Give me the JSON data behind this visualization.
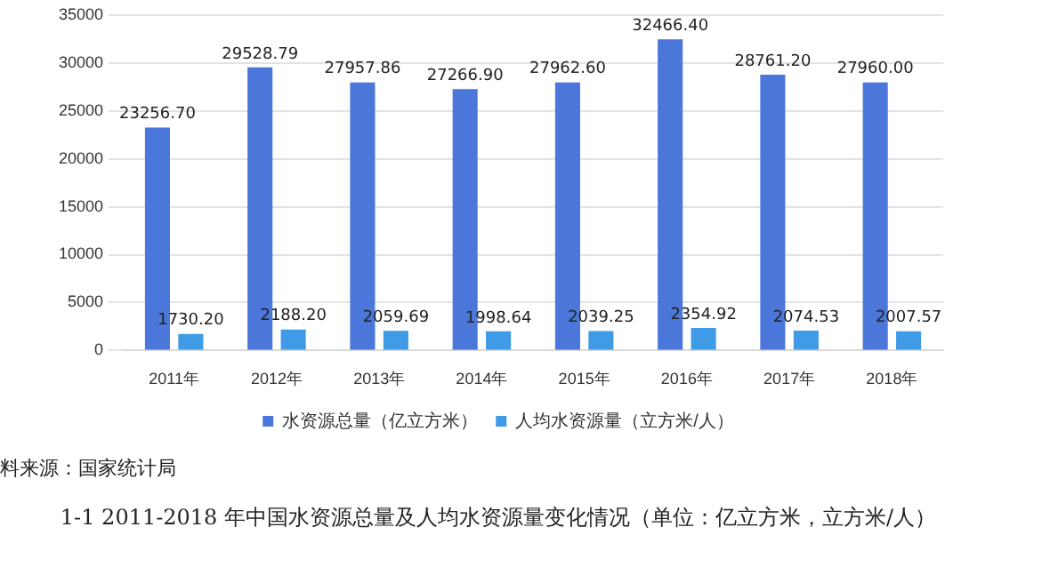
{
  "chart_data": {
    "type": "bar",
    "categories": [
      "2011年",
      "2012年",
      "2013年",
      "2014年",
      "2015年",
      "2016年",
      "2017年",
      "2018年"
    ],
    "series": [
      {
        "name": "水资源总量（亿立方米）",
        "color": "#4a77d9",
        "values": [
          23256.7,
          29528.79,
          27957.86,
          27266.9,
          27962.6,
          32466.4,
          28761.2,
          27960.0
        ],
        "value_labels": [
          "23256.70",
          "29528.79",
          "27957.86",
          "27266.90",
          "27962.60",
          "32466.40",
          "28761.20",
          "27960.00"
        ]
      },
      {
        "name": "人均水资源量（立方米/人）",
        "color": "#3f9be6",
        "values": [
          1730.2,
          2188.2,
          2059.69,
          1998.64,
          2039.25,
          2354.92,
          2074.53,
          2007.57
        ],
        "value_labels": [
          "1730.20",
          "2188.20",
          "2059.69",
          "1998.64",
          "2039.25",
          "2354.92",
          "2074.53",
          "2007.57"
        ]
      }
    ],
    "ylim": [
      0,
      35000
    ],
    "yticks": [
      0,
      5000,
      10000,
      15000,
      20000,
      25000,
      30000,
      35000
    ],
    "grid": "y",
    "legend": "bottom",
    "annotations": [
      "料来源：国家统计局",
      "1-1 2011-2018 年中国水资源总量及人均水资源量变化情况（单位：亿立方米，立方米/人）"
    ]
  }
}
